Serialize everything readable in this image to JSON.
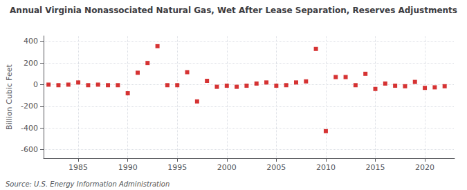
{
  "chart_data": {
    "type": "scatter",
    "title": "Annual Virginia Nonassociated Natural Gas, Wet After Lease Separation, Reserves Adjustments",
    "ylabel": "Billion Cubic Feet",
    "annotation": "Source: U.S. Energy Information Administration",
    "x": [
      1982,
      1983,
      1984,
      1985,
      1986,
      1987,
      1988,
      1989,
      1990,
      1991,
      1992,
      1993,
      1994,
      1995,
      1996,
      1997,
      1998,
      1999,
      2000,
      2001,
      2002,
      2003,
      2004,
      2005,
      2006,
      2007,
      2008,
      2009,
      2010,
      2011,
      2012,
      2013,
      2014,
      2015,
      2016,
      2017,
      2018,
      2019,
      2020,
      2021,
      2022
    ],
    "values": [
      0,
      -5,
      0,
      20,
      -5,
      0,
      -5,
      -5,
      -80,
      110,
      200,
      355,
      -5,
      -5,
      115,
      -155,
      35,
      -20,
      -10,
      -20,
      -10,
      10,
      20,
      -10,
      -5,
      20,
      30,
      330,
      -430,
      70,
      70,
      -5,
      100,
      -40,
      10,
      -10,
      -15,
      25,
      -30,
      -25,
      -15
    ],
    "color": "#cc0000",
    "marker": "square",
    "xlim": [
      1981.5,
      2023
    ],
    "xticks": [
      1985,
      1990,
      1995,
      2000,
      2005,
      2010,
      2015,
      2020
    ],
    "ylim": [
      -680,
      450
    ],
    "yticks": [
      -600,
      -400,
      -200,
      0,
      200,
      400
    ],
    "grid": true
  }
}
